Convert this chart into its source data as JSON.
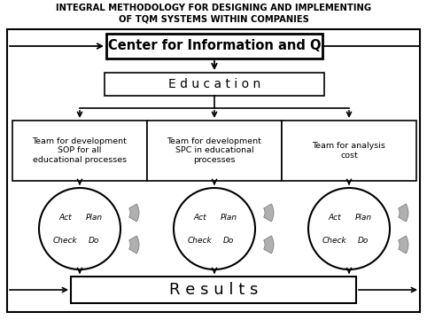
{
  "title_line1": "INTEGRAL METHODOLOGY FOR DESIGNING AND IMPLEMENTING",
  "title_line2": "OF TQM SYSTEMS WITHIN COMPANIES",
  "center_box_text": "Center for Information and Q",
  "education_text": "E d u c a t i o n",
  "team1_text": "Team for development\nSOP for all\neducational processes",
  "team2_text": "Team for development\nSPC in educational\nprocesses",
  "team3_text": "Team for analysis\ncost",
  "results_text": "R e s u l t s",
  "bg_color": "#ffffff",
  "text_color": "#000000",
  "title1_fontsize": 7.2,
  "title2_fontsize": 7.2,
  "ciq_fontsize": 10.5,
  "edu_fontsize": 10,
  "team_fontsize": 6.8,
  "results_fontsize": 13,
  "pdca_fontsize": 6.5
}
